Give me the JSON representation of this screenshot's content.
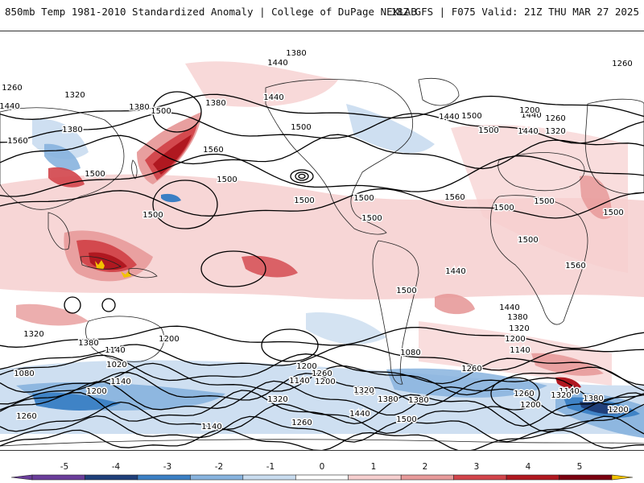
{
  "header": {
    "left": "850mb Temp 1981-2010 Standardized Anomaly | College of DuPage NEXLAB",
    "right": "18Z GFS | F075 Valid: 21Z THU MAR 27 2025"
  },
  "colors": {
    "neg5": "#6a3d9a",
    "neg4": "#1f3f7a",
    "neg3": "#3b7fc4",
    "neg2": "#87b3de",
    "neg1": "#c9dcef",
    "zero": "#ffffff",
    "pos1": "#f6cfcf",
    "pos2": "#e79a9a",
    "pos3": "#d2444a",
    "pos4": "#b01820",
    "pos5": "#7a0010",
    "extreme": "#f2c200"
  },
  "colorbar": {
    "ticks": [
      "-5",
      "-4",
      "-3",
      "-2",
      "-1",
      "0",
      "1",
      "2",
      "3",
      "4",
      "5"
    ]
  },
  "contour_labels": [
    "1380",
    "1440",
    "1260",
    "1320",
    "1440",
    "1380",
    "1500",
    "1380",
    "1500",
    "1560",
    "1500",
    "1440",
    "1380",
    "1260",
    "1440",
    "1500",
    "1440",
    "1260",
    "1200",
    "1320",
    "1440",
    "1500",
    "1560",
    "1500",
    "1500",
    "1500",
    "1500",
    "1500",
    "1500",
    "1500",
    "1500",
    "1500",
    "1560",
    "1440",
    "1560",
    "1500",
    "1440",
    "1380",
    "1320",
    "1200",
    "1140",
    "1260",
    "1320",
    "1380",
    "1200",
    "1140",
    "1080",
    "1020",
    "1080",
    "1140",
    "1200",
    "1260",
    "1380",
    "1320",
    "1200",
    "1260",
    "1140",
    "1200",
    "1320",
    "1380",
    "1440",
    "1380",
    "1500",
    "1260",
    "1200",
    "1140",
    "1320",
    "1380",
    "1200",
    "1260",
    "1140"
  ]
}
